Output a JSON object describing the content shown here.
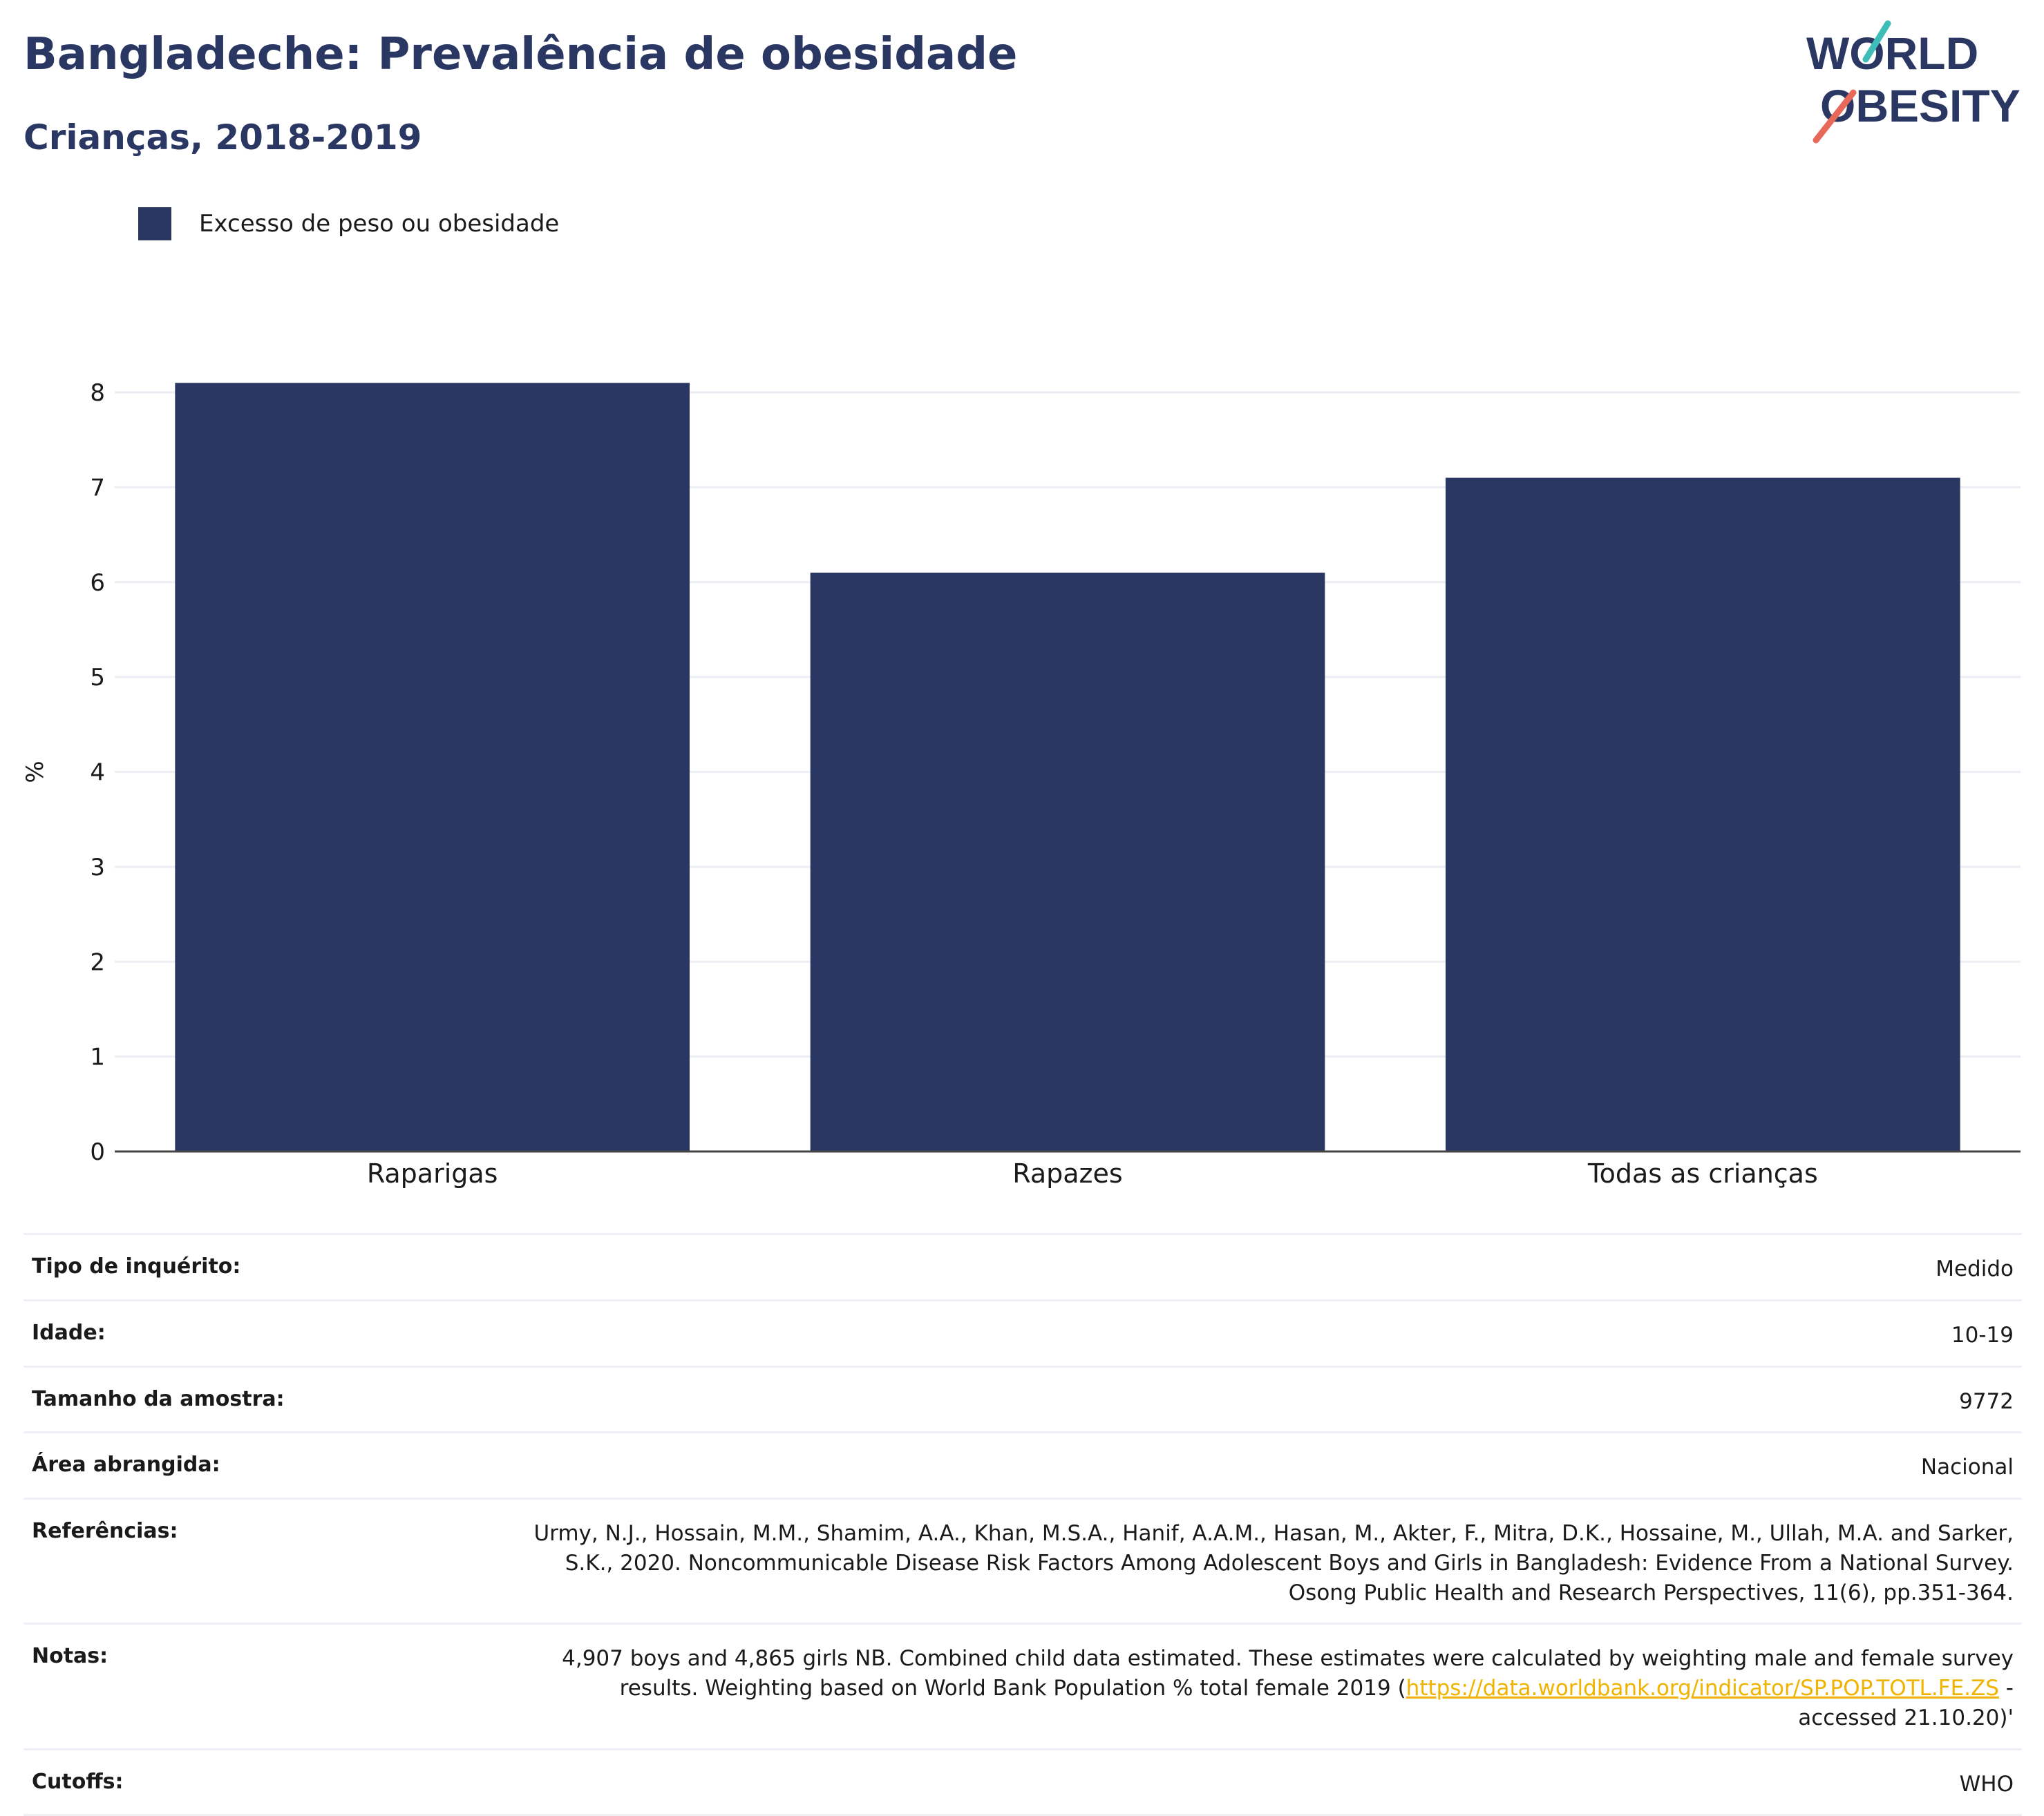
{
  "header": {
    "title": "Bangladeche: Prevalência de obesidade",
    "subtitle": "Crianças, 2018-2019"
  },
  "logo": {
    "line1": "WORLD",
    "line2": "OBESITY",
    "colors": {
      "text": "#2b3763",
      "slash_teal": "#3dbcb8",
      "slash_coral": "#e8685a"
    }
  },
  "legend": {
    "label": "Excesso de peso ou obesidade",
    "color": "#2b3763"
  },
  "chart_data": {
    "type": "bar",
    "categories": [
      "Raparigas",
      "Rapazes",
      "Todas as crianças"
    ],
    "series": [
      {
        "name": "Excesso de peso ou obesidade",
        "values": [
          8.1,
          6.1,
          7.1
        ],
        "color": "#2b3763"
      }
    ],
    "ylabel": "%",
    "ylim": [
      0,
      8
    ],
    "yticks": [
      "0",
      "1",
      "2",
      "3",
      "4",
      "5",
      "6",
      "7",
      "8"
    ],
    "grid": true
  },
  "info": {
    "survey_type": {
      "key": "Tipo de inquérito:",
      "value": "Medido"
    },
    "age": {
      "key": "Idade:",
      "value": "10-19"
    },
    "sample_size": {
      "key": "Tamanho da amostra:",
      "value": "9772"
    },
    "area": {
      "key": "Área abrangida:",
      "value": "Nacional"
    },
    "references": {
      "key": "Referências:",
      "value": "Urmy, N.J., Hossain, M.M., Shamim, A.A., Khan, M.S.A., Hanif, A.A.M., Hasan, M., Akter, F., Mitra, D.K., Hossaine, M., Ullah, M.A. and Sarker, S.K., 2020. Noncommunicable Disease Risk Factors Among Adolescent Boys and Girls in Bangladesh: Evidence From a National Survey. Osong Public Health and Research Perspectives, 11(6), pp.351-364."
    },
    "notes": {
      "key": "Notas:",
      "before": "4,907 boys and 4,865 girls NB. Combined child data estimated. These estimates were calculated by weighting male and female survey results. Weighting based on World Bank Population % total female 2019 (",
      "link": "https://data.worldbank.org/indicator/SP.POP.TOTL.FE.ZS",
      "after": " - accessed 21.10.20)'"
    },
    "cutoffs": {
      "key": "Cutoffs:",
      "value": "WHO"
    }
  }
}
